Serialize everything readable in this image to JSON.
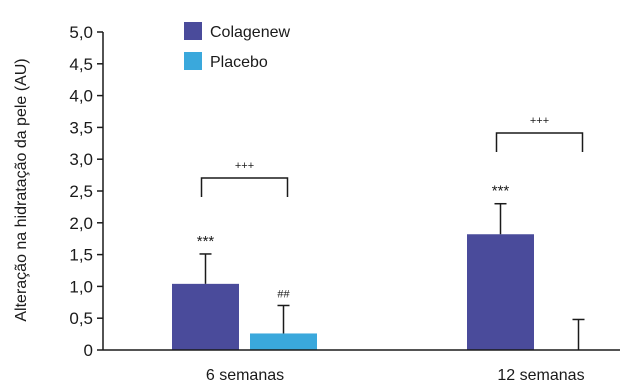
{
  "chart_data": {
    "type": "bar",
    "ylabel": "Alteração na hidratação da pele (AU)",
    "categories": [
      "6 semanas",
      "12 semanas"
    ],
    "y_ticks": [
      "0",
      "0,5",
      "1,0",
      "1,5",
      "2,0",
      "2,5",
      "3,0",
      "3,5",
      "4,0",
      "4,5",
      "5,0"
    ],
    "ylim": [
      0,
      5
    ],
    "grid": false,
    "legend_position": "top-left",
    "series": [
      {
        "name": "Colagenew",
        "color": "#4a4b9b",
        "values": [
          1.04,
          1.82
        ],
        "errors": [
          0.47,
          0.48
        ]
      },
      {
        "name": "Placebo",
        "color": "#3aa8dc",
        "values": [
          0.26,
          0.0
        ],
        "errors": [
          0.44,
          0.48
        ]
      }
    ],
    "annotations": {
      "significance_colagenew": [
        "***",
        "***"
      ],
      "significance_placebo": [
        "##",
        ""
      ],
      "between_groups": [
        "+++",
        "+++"
      ]
    }
  }
}
